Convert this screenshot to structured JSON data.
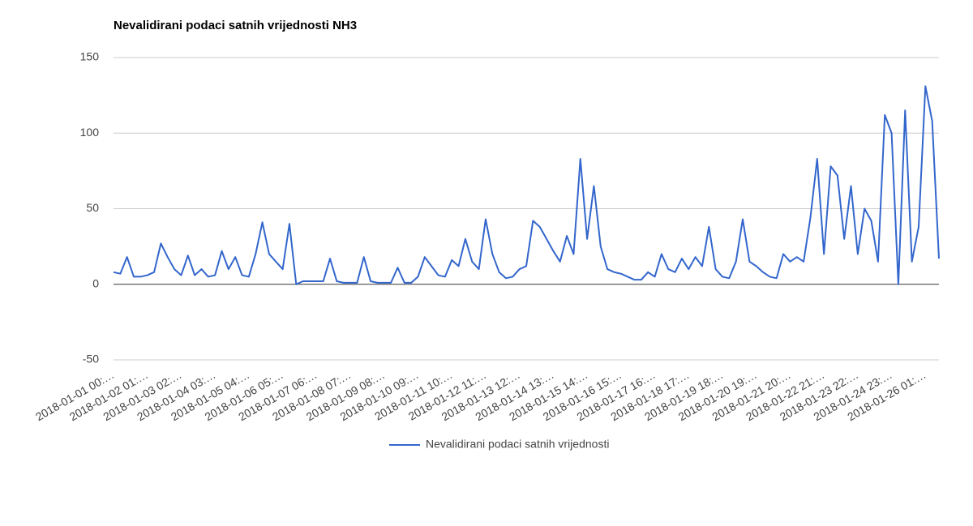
{
  "chart_data": {
    "type": "line",
    "title": "Nevalidirani podaci satnih vrijednosti NH3",
    "categories": [
      "2018-01-01 00:…",
      null,
      null,
      null,
      null,
      "2018-01-02 01:…",
      null,
      null,
      null,
      null,
      "2018-01-03 02:…",
      null,
      null,
      null,
      null,
      "2018-01-04 03:…",
      null,
      null,
      null,
      null,
      "2018-01-05 04:…",
      null,
      null,
      null,
      null,
      "2018-01-06 05:…",
      null,
      null,
      null,
      null,
      "2018-01-07 06:…",
      null,
      null,
      null,
      null,
      "2018-01-08 07:…",
      null,
      null,
      null,
      null,
      "2018-01-09 08:…",
      null,
      null,
      null,
      null,
      "2018-01-10 09:…",
      null,
      null,
      null,
      null,
      "2018-01-11 10:…",
      null,
      null,
      null,
      null,
      "2018-01-12 11:…",
      null,
      null,
      null,
      null,
      "2018-01-13 12:…",
      null,
      null,
      null,
      null,
      "2018-01-14 13:…",
      null,
      null,
      null,
      null,
      "2018-01-15 14:…",
      null,
      null,
      null,
      null,
      "2018-01-16 15:…",
      null,
      null,
      null,
      null,
      "2018-01-17 16:…",
      null,
      null,
      null,
      null,
      "2018-01-18 17:…",
      null,
      null,
      null,
      null,
      "2018-01-19 18:…",
      null,
      null,
      null,
      null,
      "2018-01-20 19:…",
      null,
      null,
      null,
      null,
      "2018-01-21 20:…",
      null,
      null,
      null,
      null,
      "2018-01-22 21:…",
      null,
      null,
      null,
      null,
      "2018-01-23 22:…",
      null,
      null,
      null,
      null,
      "2018-01-24 23:…",
      null,
      null,
      null,
      null,
      "2018-01-26 01:…",
      null,
      null
    ],
    "series": [
      {
        "name": "Nevalidirani podaci satnih vrijednosti",
        "color": "#3366cc",
        "values": [
          8,
          7,
          18,
          5,
          5,
          6,
          8,
          27,
          18,
          10,
          6,
          19,
          6,
          10,
          5,
          6,
          22,
          10,
          18,
          6,
          5,
          20,
          41,
          20,
          15,
          10,
          40,
          0,
          2,
          2,
          2,
          2,
          17,
          2,
          1,
          1,
          1,
          18,
          2,
          1,
          1,
          1,
          11,
          1,
          1,
          5,
          18,
          12,
          6,
          5,
          16,
          12,
          30,
          15,
          10,
          43,
          20,
          8,
          4,
          5,
          10,
          12,
          42,
          38,
          30,
          22,
          15,
          32,
          20,
          83,
          30,
          65,
          25,
          10,
          8,
          7,
          5,
          3,
          3,
          8,
          5,
          20,
          10,
          8,
          17,
          10,
          18,
          12,
          38,
          10,
          5,
          4,
          15,
          43,
          15,
          12,
          8,
          5,
          4,
          20,
          15,
          18,
          15,
          44,
          83,
          20,
          78,
          72,
          30,
          65,
          20,
          50,
          42,
          15,
          112,
          100,
          0,
          115,
          15,
          38,
          131,
          108,
          17
        ]
      }
    ],
    "ylim": [
      -50,
      150
    ],
    "yticks": [
      -50,
      0,
      50,
      100,
      150
    ],
    "grid": true,
    "legend": "bottom"
  }
}
